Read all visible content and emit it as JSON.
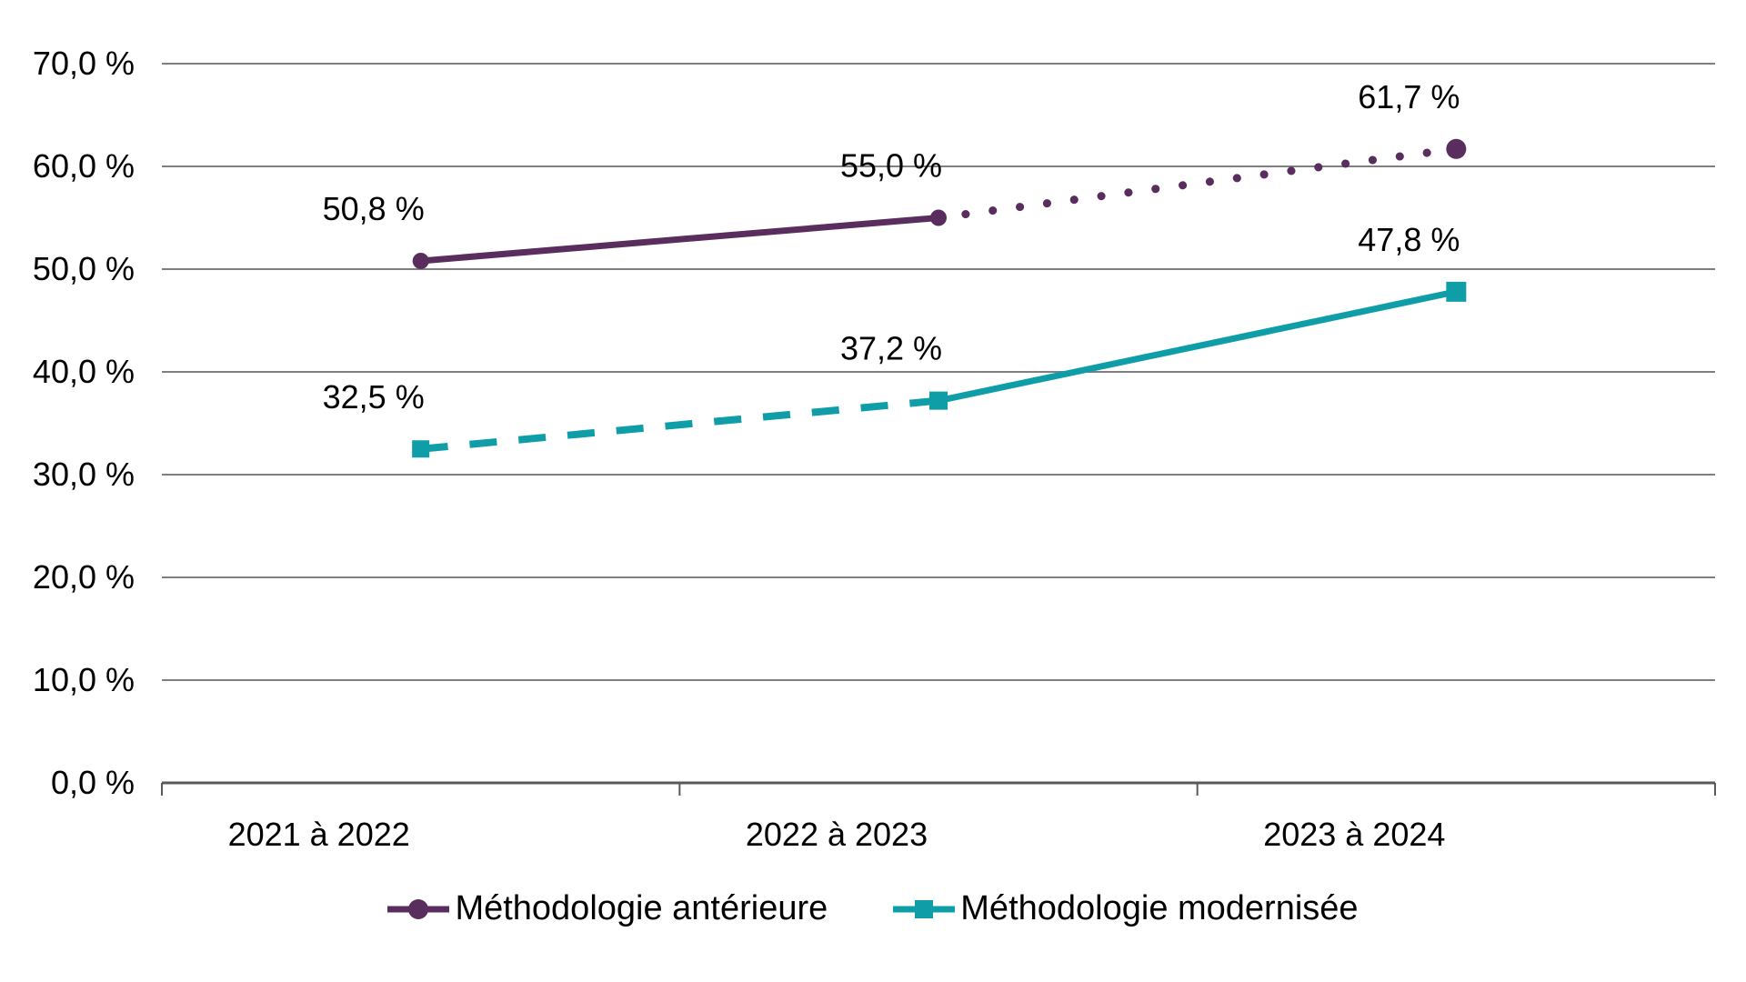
{
  "chart_data": {
    "type": "line",
    "categories": [
      "2021 à 2022",
      "2022 à 2023",
      "2023 à 2024"
    ],
    "series": [
      {
        "name": "Méthodologie antérieure",
        "values": [
          50.8,
          55.0,
          61.7
        ],
        "point_labels": [
          "50,8 %",
          "55,0 %",
          "61,7 %"
        ],
        "color": "#5A2D5F",
        "marker": "circle",
        "segment_styles": [
          "solid",
          "dotted"
        ]
      },
      {
        "name": "Méthodologie modernisée",
        "values": [
          32.5,
          37.2,
          47.8
        ],
        "point_labels": [
          "32,5 %",
          "37,2 %",
          "47,8 %"
        ],
        "color": "#0F9EA8",
        "marker": "square",
        "segment_styles": [
          "dashed",
          "solid"
        ]
      }
    ],
    "title": "",
    "xlabel": "",
    "ylabel": "",
    "ylim": [
      0,
      70
    ],
    "ytick_step": 10,
    "ytick_labels": [
      "0,0 %",
      "10,0 %",
      "20,0 %",
      "30,0 %",
      "40,0 %",
      "50,0 %",
      "60,0 %",
      "70,0 %"
    ],
    "grid": true,
    "legend_position": "bottom"
  },
  "colors": {
    "background": "#FFFFFF",
    "gridline": "#7F7F7F",
    "axis": "#595959",
    "text": "#000000",
    "series1": "#5A2D5F",
    "series2": "#0F9EA8"
  }
}
